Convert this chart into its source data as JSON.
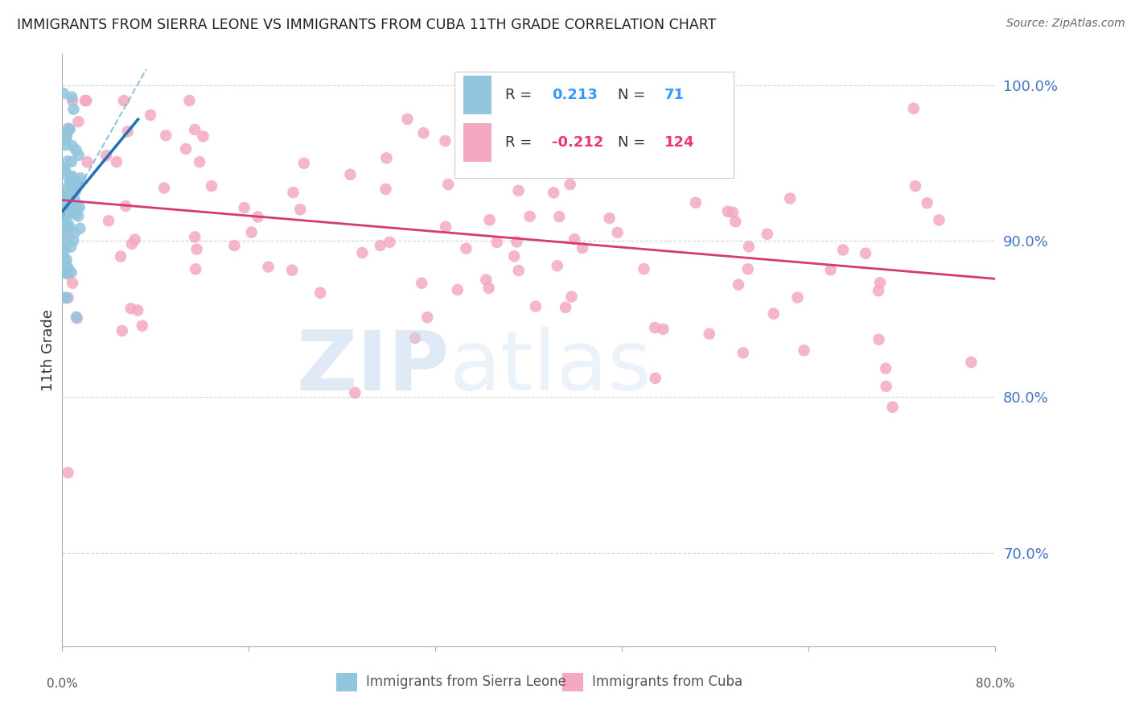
{
  "title": "IMMIGRANTS FROM SIERRA LEONE VS IMMIGRANTS FROM CUBA 11TH GRADE CORRELATION CHART",
  "source": "Source: ZipAtlas.com",
  "ylabel": "11th Grade",
  "legend_blue_r_val": "0.213",
  "legend_blue_n_val": "71",
  "legend_pink_r_val": "-0.212",
  "legend_pink_n_val": "124",
  "legend_label_blue": "Immigrants from Sierra Leone",
  "legend_label_pink": "Immigrants from Cuba",
  "blue_color": "#92c5de",
  "pink_color": "#f4a9c0",
  "blue_line_color": "#2171b5",
  "pink_line_color": "#d63b6e",
  "xmin": 0.0,
  "xmax": 0.8,
  "ymin": 64.0,
  "ymax": 102.0,
  "background_color": "#ffffff",
  "grid_color": "#c8c8c8",
  "title_color": "#222222",
  "right_axis_color": "#4472C4",
  "source_color": "#666666"
}
